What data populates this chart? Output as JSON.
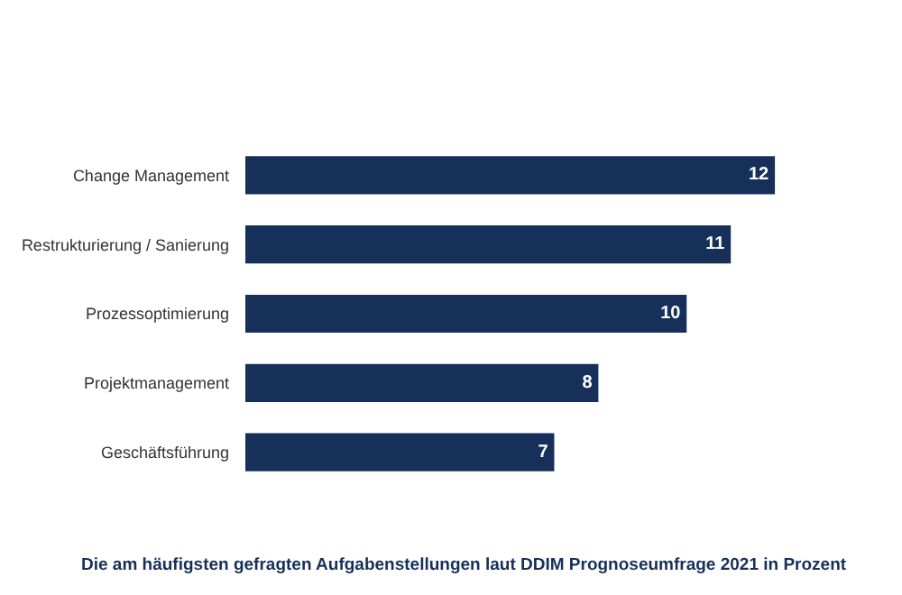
{
  "chart_data": {
    "type": "bar",
    "orientation": "horizontal",
    "categories": [
      "Change Management",
      "Restrukturierung / Sanierung",
      "Prozessoptimierung",
      "Projektmanagement",
      "Geschäftsführung"
    ],
    "values": [
      12,
      11,
      10,
      8,
      7
    ],
    "color": "#17305a",
    "data_labels": true,
    "grid": false,
    "legend": false,
    "annotations": [
      "Die am häufigsten gefragten Aufgabenstellungen laut DDIM Prognoseumfrage 2021 in Prozent"
    ]
  }
}
